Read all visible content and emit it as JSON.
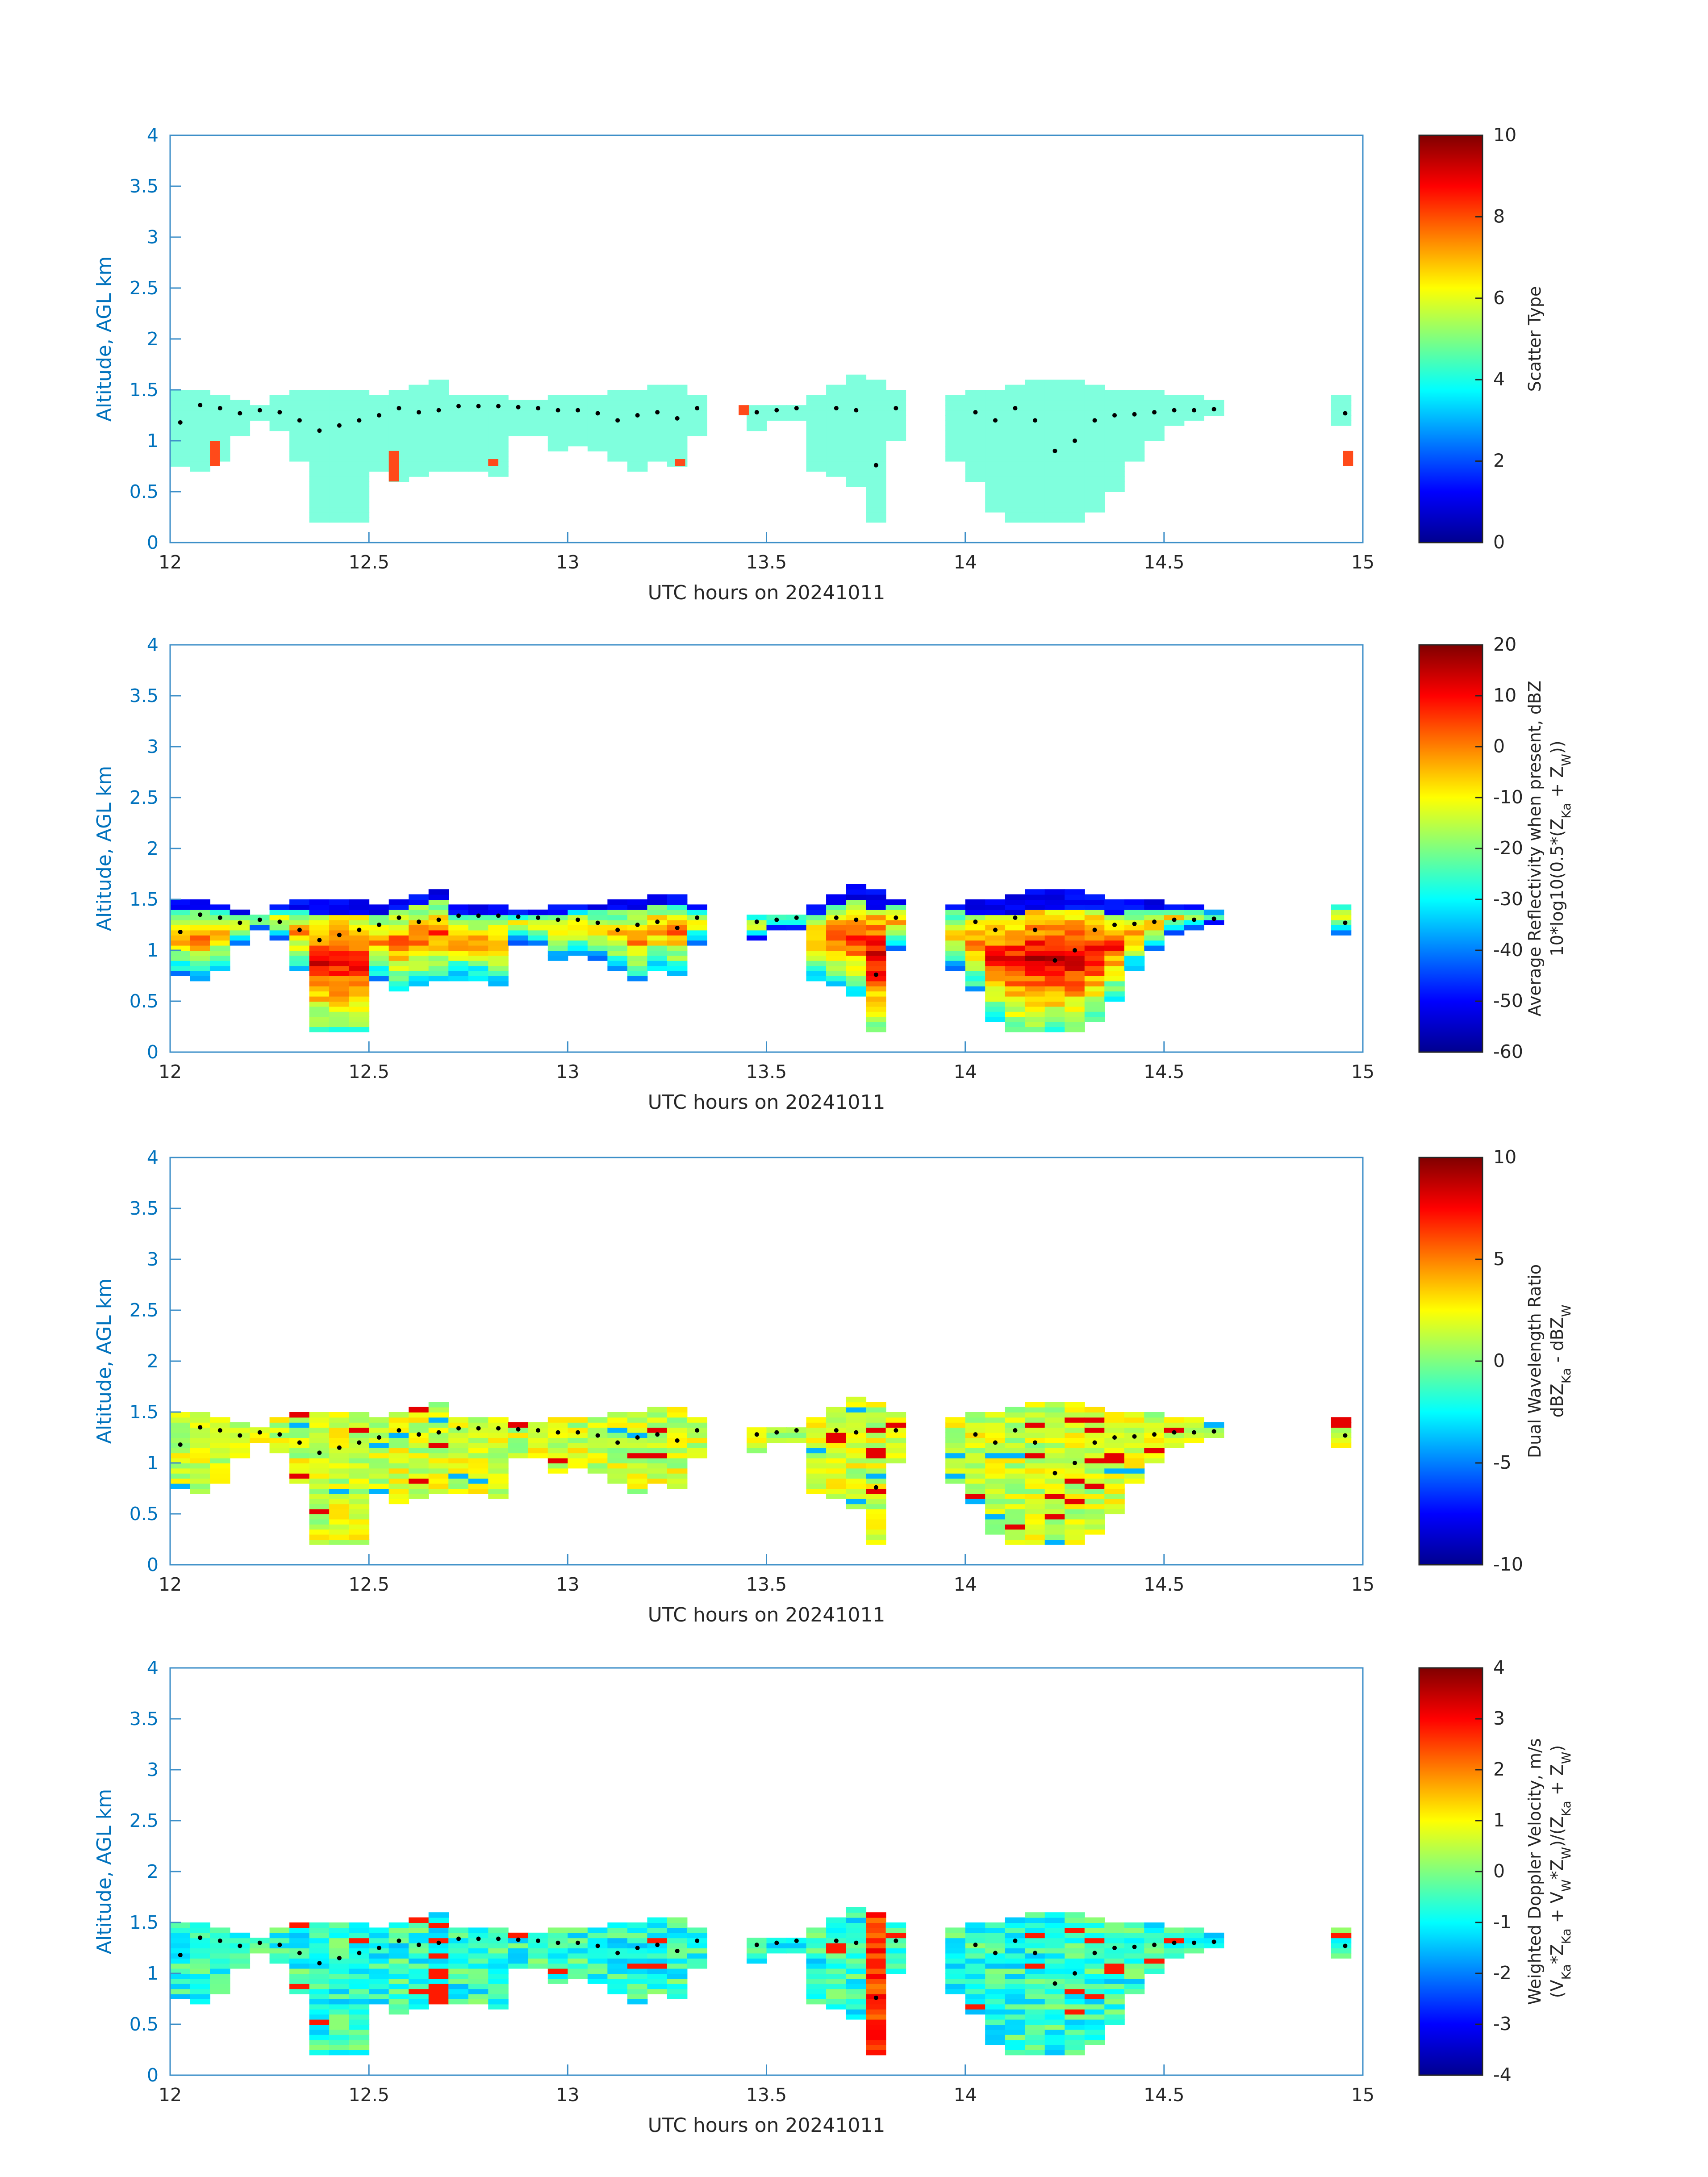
{
  "chart_data": [
    {
      "type": "heatmap",
      "title": "",
      "xlabel": "UTC hours on 20241011",
      "ylabel": "Altitude, AGL km",
      "xlim": [
        12,
        15
      ],
      "ylim": [
        0,
        4
      ],
      "xticks": [
        "12",
        "12.5",
        "13",
        "13.5",
        "14",
        "14.5",
        "15"
      ],
      "yticks": [
        "0",
        "0.5",
        "1",
        "1.5",
        "2",
        "2.5",
        "3",
        "3.5",
        "4"
      ],
      "colorbar": {
        "label_lines": [
          "Scatter Type"
        ],
        "range": [
          0,
          10
        ],
        "ticks": [
          "0",
          "2",
          "4",
          "6",
          "8",
          "10"
        ]
      }
    },
    {
      "type": "heatmap",
      "title": "",
      "xlabel": "UTC hours on 20241011",
      "ylabel": "Altitude, AGL km",
      "xlim": [
        12,
        15
      ],
      "ylim": [
        0,
        4
      ],
      "xticks": [
        "12",
        "12.5",
        "13",
        "13.5",
        "14",
        "14.5",
        "15"
      ],
      "yticks": [
        "0",
        "0.5",
        "1",
        "1.5",
        "2",
        "2.5",
        "3",
        "3.5",
        "4"
      ],
      "colorbar": {
        "label_lines": [
          "Average Reflectivity when present, dBZ",
          "10*log10(0.5*(Z_Ka + Z_W))"
        ],
        "range": [
          -60,
          20
        ],
        "ticks": [
          "-60",
          "-50",
          "-40",
          "-30",
          "-20",
          "-10",
          "0",
          "10",
          "20"
        ]
      }
    },
    {
      "type": "heatmap",
      "title": "",
      "xlabel": "UTC hours on 20241011",
      "ylabel": "Altitude, AGL km",
      "xlim": [
        12,
        15
      ],
      "ylim": [
        0,
        4
      ],
      "xticks": [
        "12",
        "12.5",
        "13",
        "13.5",
        "14",
        "14.5",
        "15"
      ],
      "yticks": [
        "0",
        "0.5",
        "1",
        "1.5",
        "2",
        "2.5",
        "3",
        "3.5",
        "4"
      ],
      "colorbar": {
        "label_lines": [
          "Dual Wavelength Ratio",
          "dBZ_Ka - dBZ_W"
        ],
        "range": [
          -10,
          10
        ],
        "ticks": [
          "-10",
          "-5",
          "0",
          "5",
          "10"
        ]
      }
    },
    {
      "type": "heatmap",
      "title": "",
      "xlabel": "UTC hours on 20241011",
      "ylabel": "Altitude, AGL km",
      "xlim": [
        12,
        15
      ],
      "ylim": [
        0,
        4
      ],
      "xticks": [
        "12",
        "12.5",
        "13",
        "13.5",
        "14",
        "14.5",
        "15"
      ],
      "yticks": [
        "0",
        "0.5",
        "1",
        "1.5",
        "2",
        "2.5",
        "3",
        "3.5",
        "4"
      ],
      "colorbar": {
        "label_lines": [
          "Weighted Doppler Velocity, m/s",
          "(V_Ka*Z_Ka + V_W*Z_W)/(Z_Ka + Z_W)"
        ],
        "range": [
          -4,
          4
        ],
        "ticks": [
          "-4",
          "-3",
          "-2",
          "-1",
          "0",
          "1",
          "2",
          "3",
          "4"
        ]
      }
    }
  ],
  "cloud_layer": {
    "columns": [
      {
        "x": 12.0,
        "bottom": 0.75,
        "top": 1.5
      },
      {
        "x": 12.05,
        "bottom": 0.7,
        "top": 1.48
      },
      {
        "x": 12.1,
        "bottom": 0.8,
        "top": 1.45
      },
      {
        "x": 12.15,
        "bottom": 1.05,
        "top": 1.4
      },
      {
        "x": 12.2,
        "bottom": 1.2,
        "top": 1.35
      },
      {
        "x": 12.25,
        "bottom": 1.1,
        "top": 1.45
      },
      {
        "x": 12.3,
        "bottom": 0.8,
        "top": 1.5
      },
      {
        "x": 12.35,
        "bottom": 0.2,
        "top": 1.5
      },
      {
        "x": 12.4,
        "bottom": 0.2,
        "top": 1.5
      },
      {
        "x": 12.45,
        "bottom": 0.2,
        "top": 1.5
      },
      {
        "x": 12.5,
        "bottom": 0.7,
        "top": 1.45
      },
      {
        "x": 12.55,
        "bottom": 0.6,
        "top": 1.5
      },
      {
        "x": 12.6,
        "bottom": 0.65,
        "top": 1.55
      },
      {
        "x": 12.65,
        "bottom": 0.7,
        "top": 1.6
      },
      {
        "x": 12.7,
        "bottom": 0.7,
        "top": 1.45
      },
      {
        "x": 12.75,
        "bottom": 0.7,
        "top": 1.42
      },
      {
        "x": 12.8,
        "bottom": 0.65,
        "top": 1.42
      },
      {
        "x": 12.85,
        "bottom": 1.05,
        "top": 1.4
      },
      {
        "x": 12.9,
        "bottom": 1.05,
        "top": 1.4
      },
      {
        "x": 12.95,
        "bottom": 0.9,
        "top": 1.42
      },
      {
        "x": 13.0,
        "bottom": 0.95,
        "top": 1.45
      },
      {
        "x": 13.05,
        "bottom": 0.9,
        "top": 1.45
      },
      {
        "x": 13.1,
        "bottom": 0.8,
        "top": 1.48
      },
      {
        "x": 13.15,
        "bottom": 0.7,
        "top": 1.5
      },
      {
        "x": 13.2,
        "bottom": 0.8,
        "top": 1.55
      },
      {
        "x": 13.25,
        "bottom": 0.75,
        "top": 1.55
      },
      {
        "x": 13.3,
        "bottom": 1.05,
        "top": 1.45
      },
      {
        "x": 13.45,
        "bottom": 1.1,
        "top": 1.35
      },
      {
        "x": 13.5,
        "bottom": 1.2,
        "top": 1.35
      },
      {
        "x": 13.55,
        "bottom": 1.2,
        "top": 1.35
      },
      {
        "x": 13.6,
        "bottom": 0.7,
        "top": 1.45
      },
      {
        "x": 13.65,
        "bottom": 0.65,
        "top": 1.55
      },
      {
        "x": 13.7,
        "bottom": 0.55,
        "top": 1.62
      },
      {
        "x": 13.75,
        "bottom": 0.2,
        "top": 1.6
      },
      {
        "x": 13.8,
        "bottom": 1.0,
        "top": 1.5
      },
      {
        "x": 13.95,
        "bottom": 0.8,
        "top": 1.45
      },
      {
        "x": 14.0,
        "bottom": 0.6,
        "top": 1.48
      },
      {
        "x": 14.05,
        "bottom": 0.3,
        "top": 1.5
      },
      {
        "x": 14.1,
        "bottom": 0.2,
        "top": 1.55
      },
      {
        "x": 14.15,
        "bottom": 0.2,
        "top": 1.6
      },
      {
        "x": 14.2,
        "bottom": 0.2,
        "top": 1.6
      },
      {
        "x": 14.25,
        "bottom": 0.2,
        "top": 1.58
      },
      {
        "x": 14.3,
        "bottom": 0.3,
        "top": 1.55
      },
      {
        "x": 14.35,
        "bottom": 0.5,
        "top": 1.5
      },
      {
        "x": 14.4,
        "bottom": 0.8,
        "top": 1.48
      },
      {
        "x": 14.45,
        "bottom": 1.0,
        "top": 1.46
      },
      {
        "x": 14.5,
        "bottom": 1.15,
        "top": 1.44
      },
      {
        "x": 14.55,
        "bottom": 1.2,
        "top": 1.42
      },
      {
        "x": 14.6,
        "bottom": 1.25,
        "top": 1.38
      },
      {
        "x": 14.92,
        "bottom": 1.15,
        "top": 1.45
      }
    ],
    "bin_width_hours": 0.05,
    "cloud_base_dots": [
      {
        "x": 12.0,
        "y": 1.18
      },
      {
        "x": 12.05,
        "y": 1.35
      },
      {
        "x": 12.1,
        "y": 1.32
      },
      {
        "x": 12.15,
        "y": 1.27
      },
      {
        "x": 12.2,
        "y": 1.3
      },
      {
        "x": 12.25,
        "y": 1.28
      },
      {
        "x": 12.3,
        "y": 1.2
      },
      {
        "x": 12.35,
        "y": 1.1
      },
      {
        "x": 12.4,
        "y": 1.15
      },
      {
        "x": 12.45,
        "y": 1.2
      },
      {
        "x": 12.5,
        "y": 1.25
      },
      {
        "x": 12.55,
        "y": 1.32
      },
      {
        "x": 12.6,
        "y": 1.28
      },
      {
        "x": 12.65,
        "y": 1.3
      },
      {
        "x": 12.7,
        "y": 1.34
      },
      {
        "x": 12.75,
        "y": 1.34
      },
      {
        "x": 12.8,
        "y": 1.34
      },
      {
        "x": 12.85,
        "y": 1.33
      },
      {
        "x": 12.9,
        "y": 1.32
      },
      {
        "x": 12.95,
        "y": 1.3
      },
      {
        "x": 13.0,
        "y": 1.3
      },
      {
        "x": 13.05,
        "y": 1.27
      },
      {
        "x": 13.1,
        "y": 1.2
      },
      {
        "x": 13.15,
        "y": 1.25
      },
      {
        "x": 13.2,
        "y": 1.28
      },
      {
        "x": 13.25,
        "y": 1.22
      },
      {
        "x": 13.3,
        "y": 1.32
      },
      {
        "x": 13.45,
        "y": 1.28
      },
      {
        "x": 13.5,
        "y": 1.3
      },
      {
        "x": 13.55,
        "y": 1.32
      },
      {
        "x": 13.65,
        "y": 1.32
      },
      {
        "x": 13.7,
        "y": 1.3
      },
      {
        "x": 13.75,
        "y": 0.76
      },
      {
        "x": 13.8,
        "y": 1.32
      },
      {
        "x": 14.0,
        "y": 1.28
      },
      {
        "x": 14.05,
        "y": 1.2
      },
      {
        "x": 14.1,
        "y": 1.32
      },
      {
        "x": 14.15,
        "y": 1.2
      },
      {
        "x": 14.2,
        "y": 0.9
      },
      {
        "x": 14.25,
        "y": 1.0
      },
      {
        "x": 14.3,
        "y": 1.2
      },
      {
        "x": 14.35,
        "y": 1.25
      },
      {
        "x": 14.4,
        "y": 1.26
      },
      {
        "x": 14.45,
        "y": 1.28
      },
      {
        "x": 14.5,
        "y": 1.3
      },
      {
        "x": 14.55,
        "y": 1.3
      },
      {
        "x": 14.6,
        "y": 1.31
      },
      {
        "x": 14.93,
        "y": 1.27
      }
    ],
    "scatter_type_red_patches": [
      {
        "x": 12.1,
        "bottom": 0.75,
        "top": 1.0
      },
      {
        "x": 12.55,
        "bottom": 0.6,
        "top": 0.9
      },
      {
        "x": 12.8,
        "bottom": 0.75,
        "top": 0.82
      },
      {
        "x": 13.27,
        "bottom": 0.75,
        "top": 0.82
      },
      {
        "x": 13.43,
        "bottom": 1.25,
        "top": 1.35
      },
      {
        "x": 14.95,
        "bottom": 0.75,
        "top": 0.9
      }
    ]
  },
  "colors": {
    "axis_blue": "#0072BD",
    "axis_line": "#3D8FC8",
    "scatter_type_cloud": "#7FFFDD",
    "scatter_type_patch": "#FF4A1A",
    "cloud_base_dot": "#000000",
    "jet_low": "#00008F",
    "jet_high": "#800000"
  }
}
